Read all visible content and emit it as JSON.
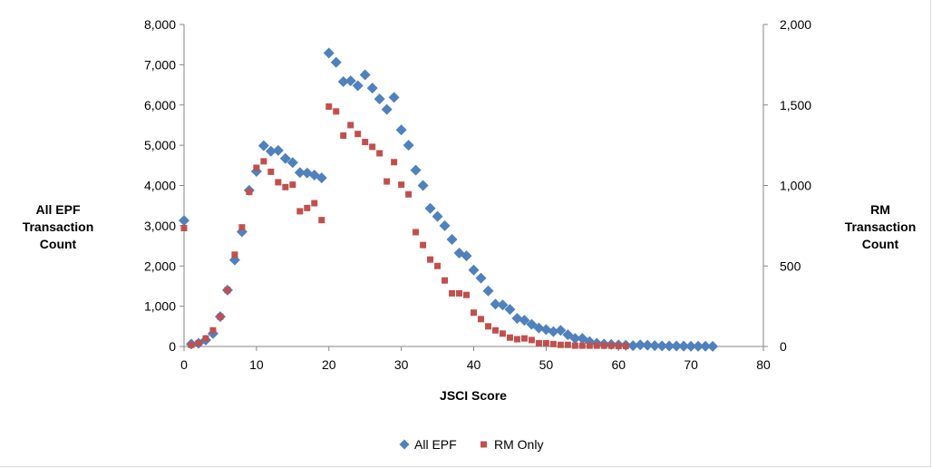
{
  "chart_data": {
    "type": "scatter",
    "xlabel": "JSCI Score",
    "ylabel_left": "All EPF\nTransaction\nCount",
    "ylabel_right": "RM\nTransaction\nCount",
    "xlim": [
      0,
      80
    ],
    "ylim_left": [
      0,
      8000
    ],
    "ylim_right": [
      0,
      2000
    ],
    "x_ticks": [
      "0",
      "10",
      "20",
      "30",
      "40",
      "50",
      "60",
      "70",
      "80"
    ],
    "y_left_ticks": [
      "0",
      "1,000",
      "2,000",
      "3,000",
      "4,000",
      "5,000",
      "6,000",
      "7,000",
      "8,000"
    ],
    "y_right_ticks": [
      "0",
      "500",
      "1,000",
      "1,500",
      "2,000"
    ],
    "grid": false,
    "legend_position": "bottom",
    "series": [
      {
        "name": "All EPF",
        "axis": "left",
        "marker": "diamond",
        "color": "#4f81bd",
        "x": [
          0,
          1,
          2,
          3,
          4,
          5,
          6,
          7,
          8,
          9,
          10,
          11,
          12,
          13,
          14,
          15,
          16,
          17,
          18,
          19,
          20,
          21,
          22,
          23,
          24,
          25,
          26,
          27,
          28,
          29,
          30,
          31,
          32,
          33,
          34,
          35,
          36,
          37,
          38,
          39,
          40,
          41,
          42,
          43,
          44,
          45,
          46,
          47,
          48,
          49,
          50,
          51,
          52,
          53,
          54,
          55,
          56,
          57,
          58,
          59,
          60,
          61,
          62,
          63,
          64,
          65,
          66,
          67,
          68,
          69,
          70,
          71,
          72,
          73
        ],
        "y": [
          3130,
          60,
          80,
          160,
          320,
          740,
          1400,
          2150,
          2850,
          3880,
          4350,
          4990,
          4850,
          4870,
          4670,
          4570,
          4320,
          4310,
          4260,
          4190,
          7290,
          7060,
          6580,
          6600,
          6480,
          6750,
          6420,
          6150,
          5890,
          6190,
          5380,
          5000,
          4380,
          4000,
          3430,
          3230,
          3000,
          2660,
          2320,
          2250,
          1900,
          1700,
          1380,
          1050,
          1030,
          920,
          700,
          650,
          550,
          460,
          420,
          370,
          400,
          290,
          200,
          200,
          120,
          80,
          60,
          50,
          40,
          30,
          20,
          40,
          30,
          20,
          15,
          10,
          10,
          8,
          5,
          5,
          5,
          3
        ]
      },
      {
        "name": "RM Only",
        "axis": "right",
        "marker": "square",
        "color": "#c0504d",
        "x": [
          0,
          1,
          2,
          3,
          4,
          5,
          6,
          7,
          8,
          9,
          10,
          11,
          12,
          13,
          14,
          15,
          16,
          17,
          18,
          19,
          20,
          21,
          22,
          23,
          24,
          25,
          26,
          27,
          28,
          29,
          30,
          31,
          32,
          33,
          34,
          35,
          36,
          37,
          38,
          39,
          40,
          41,
          42,
          43,
          44,
          45,
          46,
          47,
          48,
          49,
          50,
          51,
          52,
          53,
          54,
          55,
          56,
          57,
          58,
          59,
          60,
          61
        ],
        "y": [
          735,
          10,
          20,
          50,
          100,
          185,
          350,
          570,
          740,
          960,
          1110,
          1150,
          1085,
          1020,
          990,
          1005,
          840,
          860,
          890,
          785,
          1490,
          1460,
          1310,
          1375,
          1320,
          1270,
          1240,
          1200,
          1025,
          1145,
          1005,
          945,
          710,
          630,
          540,
          500,
          410,
          330,
          330,
          320,
          210,
          170,
          125,
          100,
          80,
          55,
          45,
          50,
          40,
          20,
          20,
          15,
          10,
          10,
          5,
          5,
          5,
          5,
          5,
          5,
          3,
          3
        ]
      }
    ]
  }
}
